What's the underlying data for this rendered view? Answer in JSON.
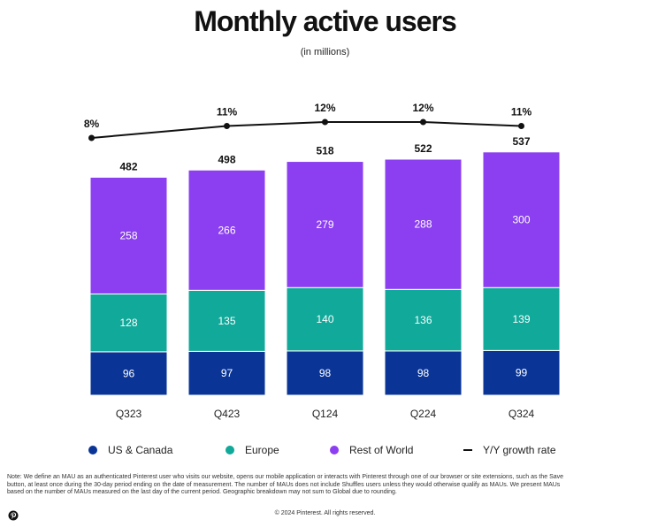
{
  "title": "Monthly active users",
  "subtitle": "(in millions)",
  "legend": {
    "us_canada": "US & Canada",
    "europe": "Europe",
    "rest_of_world": "Rest of World",
    "growth": "Y/Y growth rate"
  },
  "colors": {
    "us_canada": "#0a3597",
    "europe": "#10a99a",
    "rest_of_world": "#8c3ff0",
    "growth_line": "#111111"
  },
  "footnote": "Note: We define an MAU as an authenticated Pinterest user who visits our website, opens our mobile application or interacts with Pinterest through one of our browser or site extensions, such as the Save button, at least once during the 30-day period ending on the date of measurement. The number of MAUs does not include Shuffles users unless they would otherwise qualify as MAUs. We present MAUs based on the number of MAUs measured on the last day of the current period. Geographic breakdown may not sum to Global due to rounding.",
  "copyright": "© 2024 Pinterest. All rights reserved.",
  "logo_icon": "pinterest-logo-icon",
  "chart_data": {
    "type": "bar",
    "stacked": true,
    "categories": [
      "Q323",
      "Q423",
      "Q124",
      "Q224",
      "Q324"
    ],
    "series": [
      {
        "name": "US & Canada",
        "values": [
          96,
          97,
          98,
          98,
          99
        ]
      },
      {
        "name": "Europe",
        "values": [
          128,
          135,
          140,
          136,
          139
        ]
      },
      {
        "name": "Rest of World",
        "values": [
          258,
          266,
          279,
          288,
          300
        ]
      }
    ],
    "totals": [
      482,
      498,
      518,
      522,
      537
    ],
    "growth_line": {
      "name": "Y/Y growth rate",
      "values": [
        8,
        11,
        12,
        12,
        11
      ],
      "labels": [
        "8%",
        "11%",
        "12%",
        "12%",
        "11%"
      ]
    },
    "title": "Monthly active users",
    "subtitle": "(in millions)",
    "legend_position": "bottom",
    "grid": false
  }
}
